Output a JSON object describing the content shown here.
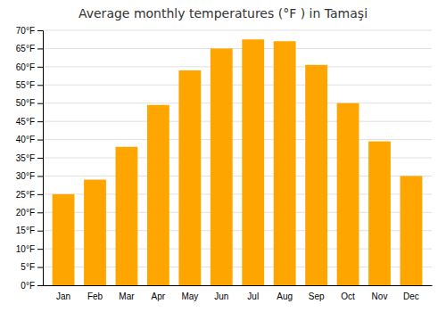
{
  "chart_data": {
    "type": "bar",
    "title": "Average monthly temperatures (°F ) in Tamaşi",
    "categories": [
      "Jan",
      "Feb",
      "Mar",
      "Apr",
      "May",
      "Jun",
      "Jul",
      "Aug",
      "Sep",
      "Oct",
      "Nov",
      "Dec"
    ],
    "values": [
      25,
      29,
      38,
      49.5,
      59,
      65,
      67.5,
      67,
      60.5,
      50,
      39.5,
      30
    ],
    "color": "#FFA500",
    "ylim": [
      0,
      70
    ],
    "yticks": [
      {
        "value": 0,
        "label": "0°F"
      },
      {
        "value": 5,
        "label": "5°F"
      },
      {
        "value": 10,
        "label": "10°F"
      },
      {
        "value": 15,
        "label": "15°F"
      },
      {
        "value": 20,
        "label": "20°F"
      },
      {
        "value": 25,
        "label": "25°F"
      },
      {
        "value": 30,
        "label": "30°F"
      },
      {
        "value": 35,
        "label": "35°F"
      },
      {
        "value": 40,
        "label": "40°F"
      },
      {
        "value": 45,
        "label": "45°F"
      },
      {
        "value": 50,
        "label": "50°F"
      },
      {
        "value": 55,
        "label": "55°F"
      },
      {
        "value": 60,
        "label": "60°F"
      },
      {
        "value": 65,
        "label": "65°F"
      },
      {
        "value": 70,
        "label": "70°F"
      }
    ],
    "grid": true
  }
}
